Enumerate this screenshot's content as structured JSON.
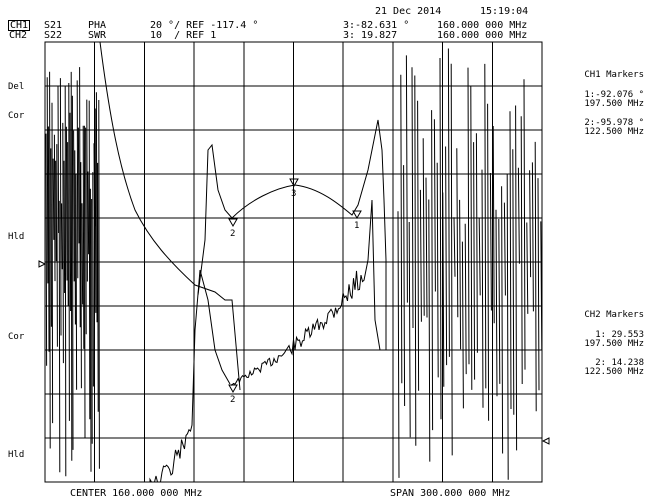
{
  "header": {
    "date": "21 Dec 2014",
    "time": "15:19:04",
    "ch1_label": "CH1",
    "ch2_label": "CH2",
    "ch1_param": "S21",
    "ch2_param": "S22",
    "ch1_format": "PHA",
    "ch2_format": "SWR",
    "ch1_scale": "20 °/ REF -117.4 °",
    "ch2_scale": "10  / REF 1",
    "ch1_active_marker": "3:-82.631 °",
    "ch2_active_marker": "3: 19.827",
    "ch1_active_freq": "160.000 000 MHz",
    "ch2_active_freq": "160.000 000 MHz"
  },
  "left_labels": {
    "del": "Del",
    "cor1": "Cor",
    "hld1": "Hld",
    "cor2": "Cor",
    "hld2": "Hld"
  },
  "ch1_markers": {
    "title": "CH1 Markers",
    "m1_value": "1:-92.076 °",
    "m1_freq": "197.500 MHz",
    "m2_value": "2:-95.978 °",
    "m2_freq": "122.500 MHz"
  },
  "ch2_markers": {
    "title": "CH2 Markers",
    "m1_value": "1: 29.553",
    "m1_freq": "197.500 MHz",
    "m2_value": "2: 14.238",
    "m2_freq": "122.500 MHz"
  },
  "footer": {
    "center": "CENTER 160.000 000 MHz",
    "span": "SPAN 300.000 000 MHz"
  },
  "trace_markers": {
    "ch1_m1": "1",
    "ch1_m2": "2",
    "ch1_m3": "3",
    "ch2_m1": "1",
    "ch2_m2": "2",
    "ch2_m3": "3"
  },
  "colors": {
    "background": "#ffffff",
    "trace": "#000000",
    "grid": "#000000"
  }
}
